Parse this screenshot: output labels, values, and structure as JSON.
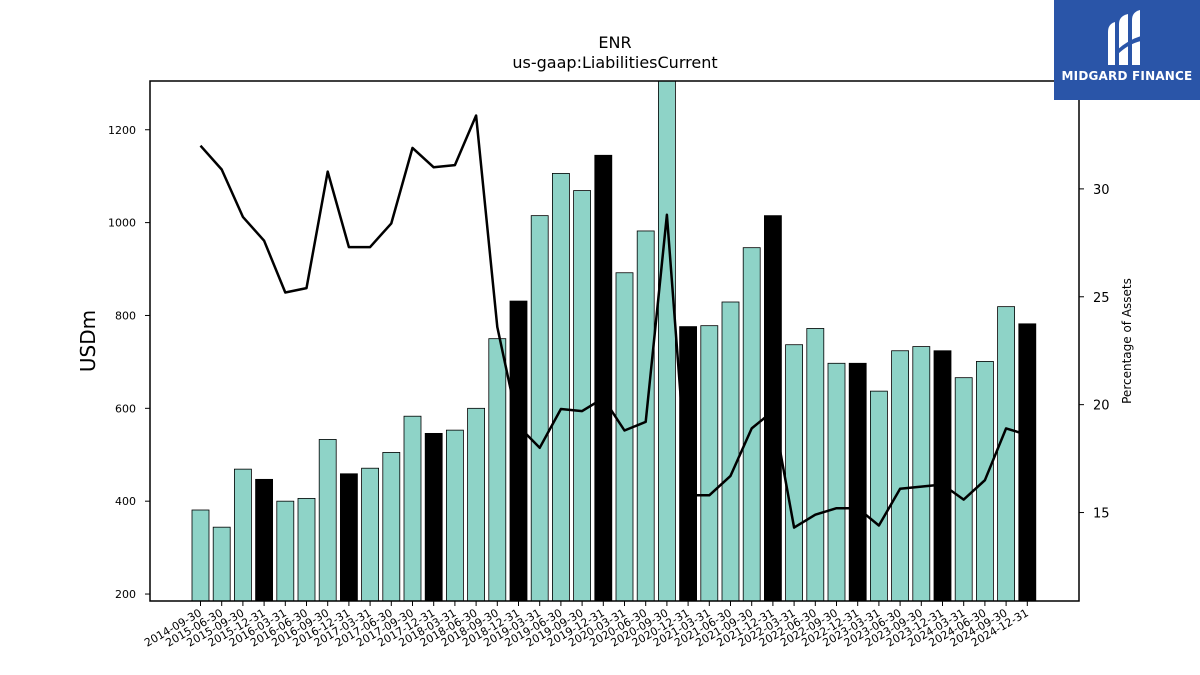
{
  "chart_data": {
    "type": "bar",
    "title": "ENR",
    "subtitle": "us-gaap:LiabilitiesCurrent",
    "ylabel": "USDm",
    "y2label": "Percentage of Assets",
    "ylim": [
      185,
      1305
    ],
    "y2lim": [
      10.9,
      35.0
    ],
    "yticks": [
      200,
      400,
      600,
      800,
      1000,
      1200
    ],
    "y2ticks": [
      15,
      20,
      25,
      30
    ],
    "grid": false,
    "categories": [
      "2014-09-30",
      "2015-06-30",
      "2015-09-30",
      "2015-12-31",
      "2016-03-31",
      "2016-06-30",
      "2016-09-30",
      "2016-12-31",
      "2017-03-31",
      "2017-06-30",
      "2017-09-30",
      "2017-12-31",
      "2018-03-31",
      "2018-06-30",
      "2018-09-30",
      "2018-12-31",
      "2019-03-31",
      "2019-06-30",
      "2019-09-30",
      "2019-12-31",
      "2020-03-31",
      "2020-06-30",
      "2020-09-30",
      "2020-12-31",
      "2021-03-31",
      "2021-06-30",
      "2021-09-30",
      "2021-12-31",
      "2022-03-31",
      "2022-06-30",
      "2022-09-30",
      "2022-12-31",
      "2023-03-31",
      "2023-06-30",
      "2023-09-30",
      "2023-12-31",
      "2024-03-31",
      "2024-06-30",
      "2024-09-30",
      "2024-12-31"
    ],
    "series": [
      {
        "type": "bar",
        "values": [
          381,
          344,
          469,
          447,
          400,
          406,
          533,
          459,
          471,
          505,
          583,
          546,
          553,
          600,
          750,
          831,
          1015,
          1106,
          1069,
          1145,
          892,
          982,
          1305,
          776,
          778,
          829,
          946,
          1015,
          737,
          772,
          697,
          697,
          637,
          724,
          733,
          724,
          666,
          701,
          819,
          782
        ],
        "highlight": [
          false,
          false,
          false,
          true,
          false,
          false,
          false,
          true,
          false,
          false,
          false,
          true,
          false,
          false,
          false,
          true,
          false,
          false,
          false,
          true,
          false,
          false,
          false,
          true,
          false,
          false,
          false,
          true,
          false,
          false,
          false,
          true,
          false,
          false,
          false,
          true,
          false,
          false,
          false,
          true
        ],
        "color": "#8ed3c7",
        "highlight_color": "#000000"
      },
      {
        "type": "line",
        "axis": "right",
        "values": [
          32.0,
          30.9,
          28.7,
          27.6,
          25.2,
          25.4,
          30.8,
          27.3,
          27.3,
          28.4,
          31.9,
          31.0,
          31.1,
          33.4,
          23.6,
          19.0,
          18.0,
          19.8,
          19.7,
          20.3,
          18.8,
          19.2,
          28.8,
          15.8,
          15.8,
          16.7,
          18.9,
          19.7,
          14.3,
          14.9,
          15.2,
          15.2,
          14.4,
          16.1,
          16.2,
          16.3,
          15.6,
          16.5,
          18.9,
          18.6
        ]
      }
    ]
  },
  "logo": {
    "text": "MIDGARD FINANCE",
    "background": "#2a55a8",
    "icon": "midgard-m-icon"
  }
}
